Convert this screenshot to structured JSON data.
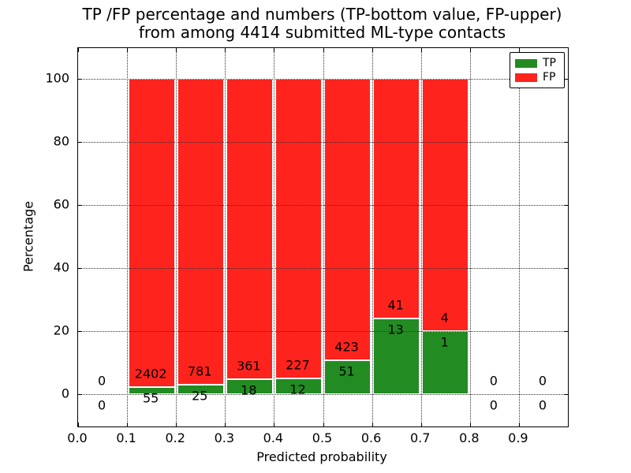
{
  "figure": {
    "title_line1": "TP /FP percentage and numbers (TP-bottom value, FP-upper)",
    "title_line2": "from among 4414 submitted ML-type contacts"
  },
  "chart_data": {
    "type": "bar",
    "subtype": "stacked-percentage-histogram",
    "title": "TP /FP percentage and numbers (TP-bottom value, FP-upper)\nfrom among 4414 submitted ML-type contacts",
    "xlabel": "Predicted probability",
    "ylabel": "Percentage",
    "total_submitted_contacts": 4414,
    "xlim": [
      0.0,
      1.0
    ],
    "ylim": [
      -10.25,
      109.75
    ],
    "x_tick_values": [
      0.0,
      0.1,
      0.2,
      0.3,
      0.4,
      0.5,
      0.6,
      0.7,
      0.8,
      0.9
    ],
    "x_tick_labels": [
      "0.0",
      "0.1",
      "0.2",
      "0.3",
      "0.4",
      "0.5",
      "0.6",
      "0.7",
      "0.8",
      "0.9"
    ],
    "y_ticks": [
      0,
      20,
      40,
      60,
      80,
      100
    ],
    "grid": true,
    "grid_linestyle": "dotted",
    "colors": {
      "tp": "#228b22",
      "fp": "#ff231e"
    },
    "legend": {
      "position": "upper-right",
      "entries": [
        {
          "label": "TP",
          "color": "#228b22"
        },
        {
          "label": "FP",
          "color": "#ff231e"
        }
      ]
    },
    "bins": [
      {
        "x0": 0.0,
        "x1": 0.1,
        "tp": 0,
        "fp": 0,
        "tp_pct": 0,
        "fp_pct": 0
      },
      {
        "x0": 0.1,
        "x1": 0.2,
        "tp": 55,
        "fp": 2402,
        "tp_pct": 2.24,
        "fp_pct": 97.76
      },
      {
        "x0": 0.2,
        "x1": 0.3,
        "tp": 25,
        "fp": 781,
        "tp_pct": 3.1,
        "fp_pct": 96.9
      },
      {
        "x0": 0.3,
        "x1": 0.4,
        "tp": 18,
        "fp": 361,
        "tp_pct": 4.75,
        "fp_pct": 95.25
      },
      {
        "x0": 0.4,
        "x1": 0.5,
        "tp": 12,
        "fp": 227,
        "tp_pct": 5.02,
        "fp_pct": 94.98
      },
      {
        "x0": 0.5,
        "x1": 0.6,
        "tp": 51,
        "fp": 423,
        "tp_pct": 10.76,
        "fp_pct": 89.24
      },
      {
        "x0": 0.6,
        "x1": 0.7,
        "tp": 13,
        "fp": 41,
        "tp_pct": 24.07,
        "fp_pct": 75.93
      },
      {
        "x0": 0.7,
        "x1": 0.8,
        "tp": 1,
        "fp": 4,
        "tp_pct": 20.0,
        "fp_pct": 80.0
      },
      {
        "x0": 0.8,
        "x1": 0.9,
        "tp": 0,
        "fp": 0,
        "tp_pct": 0,
        "fp_pct": 0
      },
      {
        "x0": 0.9,
        "x1": 1.0,
        "tp": 0,
        "fp": 0,
        "tp_pct": 0,
        "fp_pct": 0
      }
    ]
  }
}
